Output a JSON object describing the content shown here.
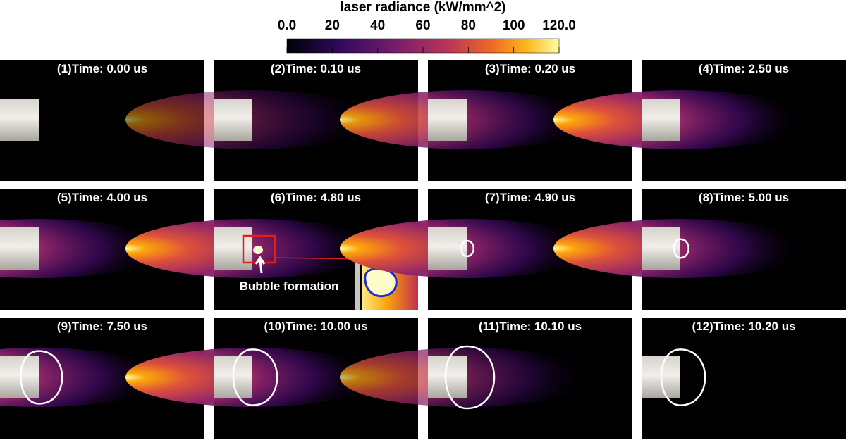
{
  "colorbar": {
    "title": "laser radiance (kW/mm^2)",
    "range": [
      0,
      120
    ],
    "ticks": [
      {
        "value": 0,
        "label": "0.0"
      },
      20,
      40,
      60,
      80,
      100,
      {
        "value": 120,
        "label": "120.0"
      }
    ]
  },
  "panels": [
    {
      "label": "(1)",
      "time": "Time: 0.00 us"
    },
    {
      "label": "(2)",
      "time": "Time: 0.10 us"
    },
    {
      "label": "(3)",
      "time": "Time: 0.20 us"
    },
    {
      "label": "(4)",
      "time": "Time: 2.50 us"
    },
    {
      "label": "(5)",
      "time": "Time: 4.00 us"
    },
    {
      "label": "(6)",
      "time": "Time: 4.80 us"
    },
    {
      "label": "(7)",
      "time": "Time: 4.90 us"
    },
    {
      "label": "(8)",
      "time": "Time: 5.00 us"
    },
    {
      "label": "(9)",
      "time": "Time: 7.50 us"
    },
    {
      "label": "(10)",
      "time": "Time: 10.00 us"
    },
    {
      "label": "(11)",
      "time": "Time: 10.10 us"
    },
    {
      "label": "(12)",
      "time": "Time: 10.20 us"
    }
  ],
  "annotation": "Bubble formation"
}
